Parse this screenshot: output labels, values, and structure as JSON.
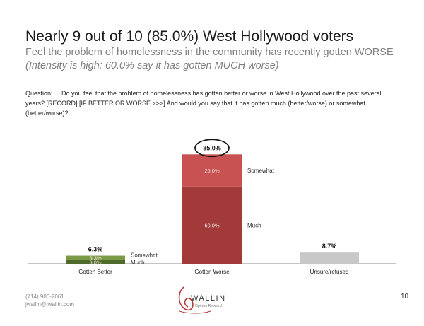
{
  "slide": {
    "title": "Nearly 9 out of 10 (85.0%) West Hollywood voters",
    "subtitle": "Feel the problem of homelessness in the community has recently gotten WORSE",
    "subtitle2": "(Intensity is high: 60.0% say it has gotten MUCH worse)",
    "question_label": "Question:",
    "question_text": "Do you feel that the problem of homelessness has gotten better or worse in West Hollywood over the past several years?  [RECORD] [IF BETTER OR WORSE >>>] And would you say that it has gotten much (better/worse) or somewhat (better/worse)?",
    "page_number": "10",
    "contact_phone": "(714) 906-2061",
    "contact_email": "jwallin@jwallin.com",
    "logo_text": "WALLIN",
    "logo_subtext": "Opinion Research"
  },
  "chart_data": {
    "type": "bar",
    "stacked": true,
    "categories": [
      "Gotten Better",
      "Gotten Worse",
      "Unsure/refused"
    ],
    "series": [
      {
        "name": "Much",
        "values": [
          3.0,
          60.0,
          8.7
        ],
        "labels": [
          "3.0%",
          "60.0%",
          ""
        ]
      },
      {
        "name": "Somewhat",
        "values": [
          3.3,
          25.0,
          0
        ],
        "labels": [
          "3.3%",
          "25.0%",
          ""
        ]
      }
    ],
    "totals": [
      "6.3%",
      "85.0%",
      "8.7%"
    ],
    "segment_names": [
      [
        "Much",
        "Somewhat"
      ],
      [
        "Much",
        "Somewhat"
      ],
      []
    ],
    "ylim": [
      0,
      100
    ],
    "grid": false,
    "colors": {
      "better_much": "#4f6b2c",
      "better_somewhat": "#7a9a45",
      "worse_much": "#a23a3a",
      "worse_somewhat": "#c85151",
      "unsure": "#c8c8c8",
      "highlight_circle": "#111111"
    }
  }
}
